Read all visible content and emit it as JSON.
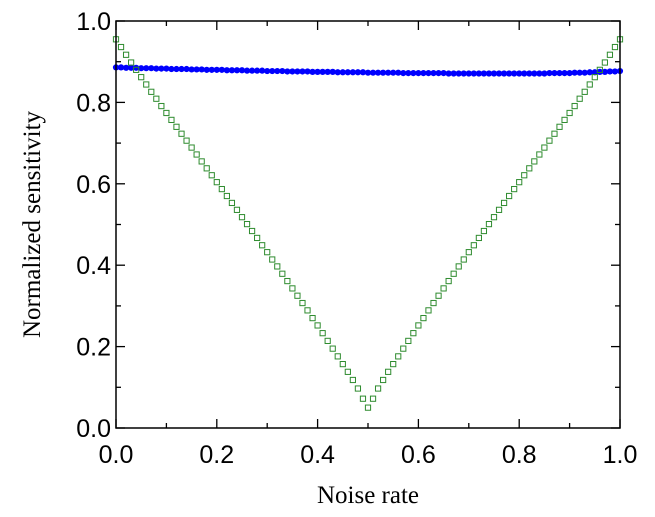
{
  "chart_data": {
    "type": "scatter",
    "title": "",
    "xlabel": "Noise rate",
    "ylabel": "Normalized sensitivity",
    "xlim": [
      0,
      1
    ],
    "ylim": [
      0,
      1
    ],
    "xticks": [
      "0.0",
      "0.2",
      "0.4",
      "0.6",
      "0.8",
      "1.0"
    ],
    "yticks": [
      "0.0",
      "0.2",
      "0.4",
      "0.6",
      "0.8",
      "1.0"
    ],
    "grid": false,
    "legend": "none",
    "series": [
      {
        "marker": "filled-circle",
        "color": "#0000ff",
        "x": [
          0.0,
          0.01,
          0.02,
          0.03,
          0.04,
          0.05,
          0.06,
          0.07,
          0.08,
          0.09,
          0.1,
          0.11,
          0.12,
          0.13,
          0.14,
          0.15,
          0.16,
          0.17,
          0.18,
          0.19,
          0.2,
          0.21,
          0.22,
          0.23,
          0.24,
          0.25,
          0.26,
          0.27,
          0.28,
          0.29,
          0.3,
          0.31,
          0.32,
          0.33,
          0.34,
          0.35,
          0.36,
          0.37,
          0.38,
          0.39,
          0.4,
          0.41,
          0.42,
          0.43,
          0.44,
          0.45,
          0.46,
          0.47,
          0.48,
          0.49,
          0.5,
          0.51,
          0.52,
          0.53,
          0.54,
          0.55,
          0.56,
          0.57,
          0.58,
          0.59,
          0.6,
          0.61,
          0.62,
          0.63,
          0.64,
          0.65,
          0.66,
          0.67,
          0.68,
          0.69,
          0.7,
          0.71,
          0.72,
          0.73,
          0.74,
          0.75,
          0.76,
          0.77,
          0.78,
          0.79,
          0.8,
          0.81,
          0.82,
          0.83,
          0.84,
          0.85,
          0.86,
          0.87,
          0.88,
          0.89,
          0.9,
          0.91,
          0.92,
          0.93,
          0.94,
          0.95,
          0.96,
          0.97,
          0.98,
          0.99,
          1.0
        ],
        "y": [
          0.886,
          0.886,
          0.885,
          0.885,
          0.885,
          0.884,
          0.884,
          0.884,
          0.883,
          0.883,
          0.883,
          0.882,
          0.882,
          0.882,
          0.882,
          0.881,
          0.881,
          0.881,
          0.88,
          0.88,
          0.88,
          0.88,
          0.879,
          0.879,
          0.879,
          0.879,
          0.878,
          0.878,
          0.878,
          0.878,
          0.877,
          0.877,
          0.877,
          0.877,
          0.876,
          0.876,
          0.876,
          0.876,
          0.876,
          0.875,
          0.875,
          0.875,
          0.875,
          0.875,
          0.874,
          0.874,
          0.874,
          0.874,
          0.874,
          0.874,
          0.873,
          0.873,
          0.873,
          0.873,
          0.873,
          0.873,
          0.873,
          0.872,
          0.872,
          0.872,
          0.872,
          0.872,
          0.872,
          0.872,
          0.872,
          0.872,
          0.871,
          0.871,
          0.871,
          0.871,
          0.871,
          0.871,
          0.871,
          0.871,
          0.871,
          0.871,
          0.871,
          0.871,
          0.871,
          0.871,
          0.871,
          0.871,
          0.871,
          0.871,
          0.871,
          0.871,
          0.872,
          0.872,
          0.872,
          0.872,
          0.872,
          0.873,
          0.873,
          0.873,
          0.874,
          0.874,
          0.875,
          0.875,
          0.876,
          0.876,
          0.877
        ]
      },
      {
        "marker": "open-square",
        "color": "#2e8b2e",
        "x": [
          0.0,
          0.01,
          0.02,
          0.03,
          0.04,
          0.05,
          0.06,
          0.07,
          0.08,
          0.09,
          0.1,
          0.11,
          0.12,
          0.13,
          0.14,
          0.15,
          0.16,
          0.17,
          0.18,
          0.19,
          0.2,
          0.21,
          0.22,
          0.23,
          0.24,
          0.25,
          0.26,
          0.27,
          0.28,
          0.29,
          0.3,
          0.31,
          0.32,
          0.33,
          0.34,
          0.35,
          0.36,
          0.37,
          0.38,
          0.39,
          0.4,
          0.41,
          0.42,
          0.43,
          0.44,
          0.45,
          0.46,
          0.47,
          0.48,
          0.49,
          0.5,
          0.51,
          0.52,
          0.53,
          0.54,
          0.55,
          0.56,
          0.57,
          0.58,
          0.59,
          0.6,
          0.61,
          0.62,
          0.63,
          0.64,
          0.65,
          0.66,
          0.67,
          0.68,
          0.69,
          0.7,
          0.71,
          0.72,
          0.73,
          0.74,
          0.75,
          0.76,
          0.77,
          0.78,
          0.79,
          0.8,
          0.81,
          0.82,
          0.83,
          0.84,
          0.85,
          0.86,
          0.87,
          0.88,
          0.89,
          0.9,
          0.91,
          0.92,
          0.93,
          0.94,
          0.95,
          0.96,
          0.97,
          0.98,
          0.99,
          1.0
        ],
        "y": [
          0.955,
          0.936,
          0.917,
          0.898,
          0.88,
          0.862,
          0.844,
          0.826,
          0.809,
          0.791,
          0.774,
          0.757,
          0.74,
          0.723,
          0.706,
          0.689,
          0.672,
          0.655,
          0.638,
          0.621,
          0.604,
          0.587,
          0.57,
          0.553,
          0.536,
          0.518,
          0.501,
          0.484,
          0.467,
          0.449,
          0.432,
          0.414,
          0.397,
          0.379,
          0.361,
          0.343,
          0.325,
          0.307,
          0.289,
          0.27,
          0.252,
          0.233,
          0.214,
          0.195,
          0.176,
          0.157,
          0.138,
          0.118,
          0.097,
          0.072,
          0.05,
          0.072,
          0.097,
          0.118,
          0.138,
          0.157,
          0.176,
          0.195,
          0.214,
          0.233,
          0.252,
          0.27,
          0.289,
          0.307,
          0.325,
          0.343,
          0.361,
          0.379,
          0.397,
          0.414,
          0.432,
          0.449,
          0.467,
          0.484,
          0.501,
          0.518,
          0.536,
          0.553,
          0.57,
          0.587,
          0.604,
          0.621,
          0.638,
          0.655,
          0.672,
          0.689,
          0.706,
          0.723,
          0.74,
          0.757,
          0.774,
          0.791,
          0.809,
          0.826,
          0.844,
          0.862,
          0.88,
          0.898,
          0.917,
          0.936,
          0.955
        ]
      }
    ]
  }
}
